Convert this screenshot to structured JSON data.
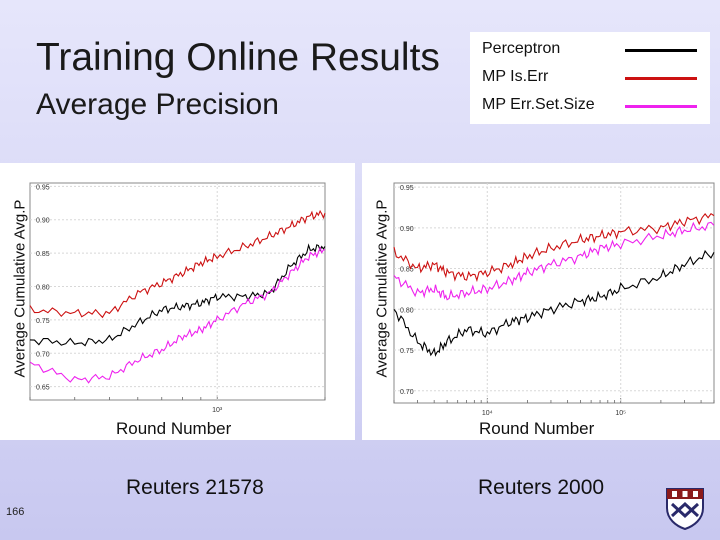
{
  "slide": {
    "title": "Training Online Results",
    "subtitle": "Average Precision",
    "page_number": "166",
    "accent_bg": "#dcdcf6"
  },
  "legend": [
    {
      "label": "Perceptron",
      "color": "#000000"
    },
    {
      "label": "MP Is.Err",
      "color": "#cc1111"
    },
    {
      "label": "MP Err.Set.Size",
      "color": "#ee22ee"
    }
  ],
  "logo": {
    "name": "university-shield-icon"
  },
  "chart_data": [
    {
      "type": "line",
      "caption": "Reuters 21578",
      "xlabel": "Round Number",
      "ylabel": "Average Cumulative Avg.P",
      "log_x": true,
      "xlim": [
        300,
        2000
      ],
      "ylim": [
        0.63,
        0.955
      ],
      "yticks": [
        0.65,
        0.7,
        0.75,
        0.8,
        0.85,
        0.9,
        0.95
      ],
      "xticks": [
        1000
      ],
      "xtick_labels": [
        "10³"
      ],
      "grid": true,
      "series": [
        {
          "name": "Perceptron",
          "color": "#000000",
          "x": [
            300,
            400,
            500,
            600,
            700,
            800,
            900,
            1000,
            1200,
            1400,
            1600,
            1800,
            2000
          ],
          "y": [
            0.72,
            0.715,
            0.72,
            0.745,
            0.765,
            0.77,
            0.775,
            0.785,
            0.785,
            0.79,
            0.83,
            0.855,
            0.86
          ]
        },
        {
          "name": "MP Is.Err",
          "color": "#cc1111",
          "x": [
            300,
            400,
            500,
            600,
            700,
            800,
            900,
            1000,
            1200,
            1400,
            1600,
            1800,
            2000
          ],
          "y": [
            0.765,
            0.76,
            0.76,
            0.79,
            0.805,
            0.82,
            0.835,
            0.845,
            0.86,
            0.875,
            0.89,
            0.905,
            0.91
          ]
        },
        {
          "name": "MP Err.Set.Size",
          "color": "#ee22ee",
          "x": [
            300,
            400,
            500,
            600,
            700,
            800,
            900,
            1000,
            1200,
            1400,
            1600,
            1800,
            2000
          ],
          "y": [
            0.685,
            0.66,
            0.665,
            0.69,
            0.705,
            0.725,
            0.735,
            0.75,
            0.775,
            0.79,
            0.82,
            0.845,
            0.855
          ]
        }
      ]
    },
    {
      "type": "line",
      "caption": "Reuters 2000",
      "xlabel": "Round Number",
      "ylabel": "Average Cumulative Avg.P",
      "log_x": true,
      "xlim": [
        2000,
        500000
      ],
      "ylim": [
        0.685,
        0.955
      ],
      "yticks": [
        0.7,
        0.75,
        0.8,
        0.85,
        0.9,
        0.95
      ],
      "xticks": [
        10000,
        100000
      ],
      "xtick_labels": [
        "10⁴",
        "10⁵"
      ],
      "grid": true,
      "series": [
        {
          "name": "Perceptron",
          "color": "#000000",
          "x": [
            2000,
            3000,
            4000,
            5000,
            7000,
            10000,
            15000,
            20000,
            30000,
            50000,
            70000,
            100000,
            200000,
            300000,
            500000
          ],
          "y": [
            0.8,
            0.76,
            0.745,
            0.76,
            0.775,
            0.77,
            0.785,
            0.79,
            0.8,
            0.81,
            0.815,
            0.825,
            0.84,
            0.855,
            0.87
          ]
        },
        {
          "name": "MP Is.Err",
          "color": "#cc1111",
          "x": [
            2000,
            3000,
            4000,
            5000,
            7000,
            10000,
            15000,
            20000,
            30000,
            50000,
            70000,
            100000,
            200000,
            300000,
            500000
          ],
          "y": [
            0.87,
            0.85,
            0.855,
            0.845,
            0.84,
            0.845,
            0.855,
            0.865,
            0.875,
            0.885,
            0.89,
            0.895,
            0.9,
            0.908,
            0.915
          ]
        },
        {
          "name": "MP Err.Set.Size",
          "color": "#ee22ee",
          "x": [
            2000,
            3000,
            4000,
            5000,
            7000,
            10000,
            15000,
            20000,
            30000,
            50000,
            70000,
            100000,
            200000,
            300000,
            500000
          ],
          "y": [
            0.84,
            0.82,
            0.825,
            0.815,
            0.82,
            0.825,
            0.835,
            0.845,
            0.855,
            0.865,
            0.875,
            0.88,
            0.89,
            0.897,
            0.903
          ]
        }
      ]
    }
  ]
}
